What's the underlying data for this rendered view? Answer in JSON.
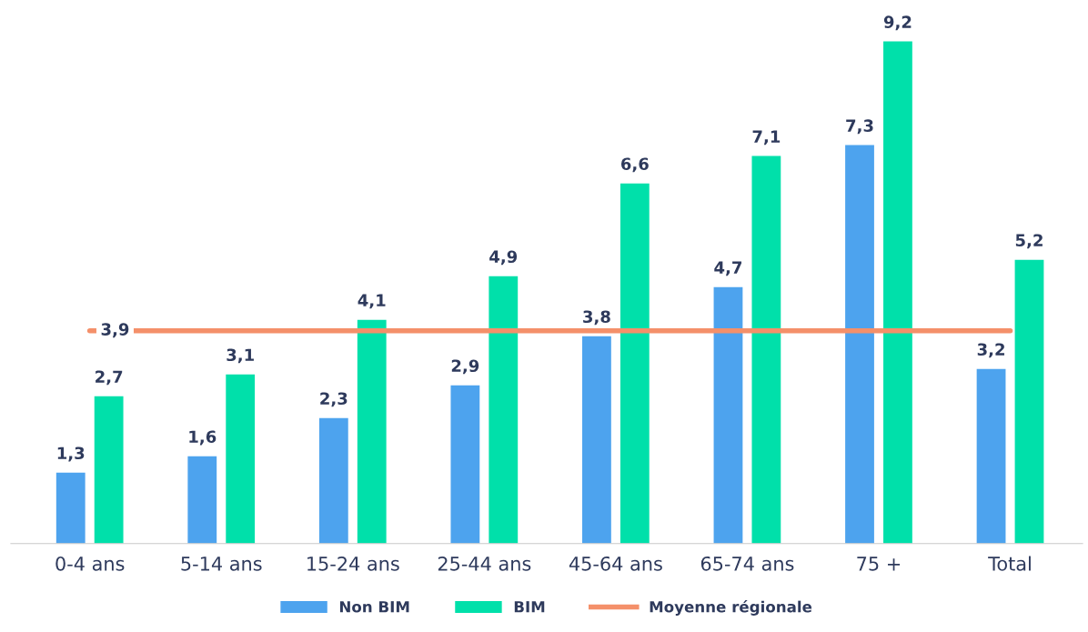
{
  "chart_data": {
    "type": "bar",
    "categories": [
      "0-4 ans",
      "5-14 ans",
      "15-24 ans",
      "25-44 ans",
      "45-64 ans",
      "65-74 ans",
      "75 +",
      "Total"
    ],
    "series": [
      {
        "name": "Non BIM",
        "color": "#4da3ee",
        "values": [
          1.3,
          1.6,
          2.3,
          2.9,
          3.8,
          4.7,
          7.3,
          3.2
        ],
        "value_labels": [
          "1,3",
          "1,6",
          "2,3",
          "2,9",
          "3,8",
          "4,7",
          "7,3",
          "3,2"
        ]
      },
      {
        "name": "BIM",
        "color": "#00e0aa",
        "values": [
          2.7,
          3.1,
          4.1,
          4.9,
          6.6,
          7.1,
          9.2,
          5.2
        ],
        "value_labels": [
          "2,7",
          "3,1",
          "4,1",
          "4,9",
          "6,6",
          "7,1",
          "9,2",
          "5,2"
        ]
      },
      {
        "name": "Moyenne régionale",
        "type": "line",
        "color": "#f4906a",
        "values": [
          3.9,
          3.9,
          3.9,
          3.9,
          3.9,
          3.9,
          3.9,
          3.9
        ],
        "value_labels": [
          "3,9",
          null,
          null,
          null,
          null,
          null,
          null,
          null
        ]
      }
    ],
    "tick_labels": "x",
    "grid": false,
    "legend": "bottom"
  }
}
